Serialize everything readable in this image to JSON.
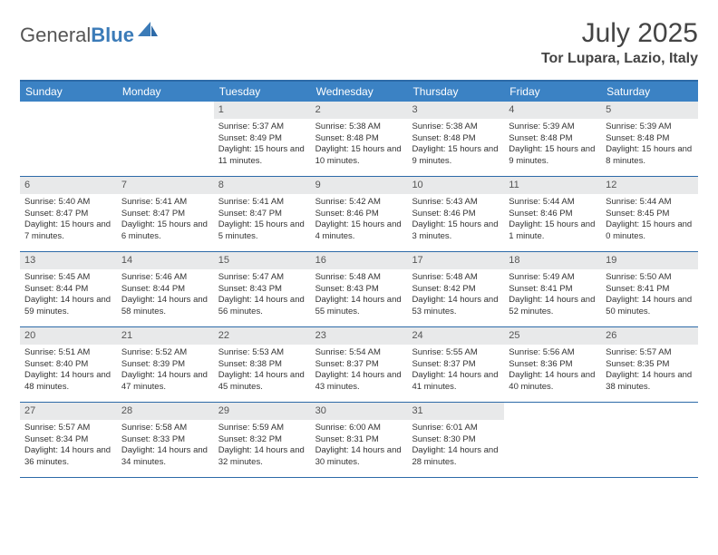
{
  "brand": {
    "part1": "General",
    "part2": "Blue"
  },
  "title": "July 2025",
  "location": "Tor Lupara, Lazio, Italy",
  "colors": {
    "header_bg": "#3b82c4",
    "border": "#2d6aa8",
    "daynum_bg": "#e8e9ea",
    "text": "#333333",
    "brand_blue": "#3b7bb8"
  },
  "day_names": [
    "Sunday",
    "Monday",
    "Tuesday",
    "Wednesday",
    "Thursday",
    "Friday",
    "Saturday"
  ],
  "weeks": [
    [
      null,
      null,
      {
        "n": "1",
        "sr": "5:37 AM",
        "ss": "8:49 PM",
        "dl": "15 hours and 11 minutes."
      },
      {
        "n": "2",
        "sr": "5:38 AM",
        "ss": "8:48 PM",
        "dl": "15 hours and 10 minutes."
      },
      {
        "n": "3",
        "sr": "5:38 AM",
        "ss": "8:48 PM",
        "dl": "15 hours and 9 minutes."
      },
      {
        "n": "4",
        "sr": "5:39 AM",
        "ss": "8:48 PM",
        "dl": "15 hours and 9 minutes."
      },
      {
        "n": "5",
        "sr": "5:39 AM",
        "ss": "8:48 PM",
        "dl": "15 hours and 8 minutes."
      }
    ],
    [
      {
        "n": "6",
        "sr": "5:40 AM",
        "ss": "8:47 PM",
        "dl": "15 hours and 7 minutes."
      },
      {
        "n": "7",
        "sr": "5:41 AM",
        "ss": "8:47 PM",
        "dl": "15 hours and 6 minutes."
      },
      {
        "n": "8",
        "sr": "5:41 AM",
        "ss": "8:47 PM",
        "dl": "15 hours and 5 minutes."
      },
      {
        "n": "9",
        "sr": "5:42 AM",
        "ss": "8:46 PM",
        "dl": "15 hours and 4 minutes."
      },
      {
        "n": "10",
        "sr": "5:43 AM",
        "ss": "8:46 PM",
        "dl": "15 hours and 3 minutes."
      },
      {
        "n": "11",
        "sr": "5:44 AM",
        "ss": "8:46 PM",
        "dl": "15 hours and 1 minute."
      },
      {
        "n": "12",
        "sr": "5:44 AM",
        "ss": "8:45 PM",
        "dl": "15 hours and 0 minutes."
      }
    ],
    [
      {
        "n": "13",
        "sr": "5:45 AM",
        "ss": "8:44 PM",
        "dl": "14 hours and 59 minutes."
      },
      {
        "n": "14",
        "sr": "5:46 AM",
        "ss": "8:44 PM",
        "dl": "14 hours and 58 minutes."
      },
      {
        "n": "15",
        "sr": "5:47 AM",
        "ss": "8:43 PM",
        "dl": "14 hours and 56 minutes."
      },
      {
        "n": "16",
        "sr": "5:48 AM",
        "ss": "8:43 PM",
        "dl": "14 hours and 55 minutes."
      },
      {
        "n": "17",
        "sr": "5:48 AM",
        "ss": "8:42 PM",
        "dl": "14 hours and 53 minutes."
      },
      {
        "n": "18",
        "sr": "5:49 AM",
        "ss": "8:41 PM",
        "dl": "14 hours and 52 minutes."
      },
      {
        "n": "19",
        "sr": "5:50 AM",
        "ss": "8:41 PM",
        "dl": "14 hours and 50 minutes."
      }
    ],
    [
      {
        "n": "20",
        "sr": "5:51 AM",
        "ss": "8:40 PM",
        "dl": "14 hours and 48 minutes."
      },
      {
        "n": "21",
        "sr": "5:52 AM",
        "ss": "8:39 PM",
        "dl": "14 hours and 47 minutes."
      },
      {
        "n": "22",
        "sr": "5:53 AM",
        "ss": "8:38 PM",
        "dl": "14 hours and 45 minutes."
      },
      {
        "n": "23",
        "sr": "5:54 AM",
        "ss": "8:37 PM",
        "dl": "14 hours and 43 minutes."
      },
      {
        "n": "24",
        "sr": "5:55 AM",
        "ss": "8:37 PM",
        "dl": "14 hours and 41 minutes."
      },
      {
        "n": "25",
        "sr": "5:56 AM",
        "ss": "8:36 PM",
        "dl": "14 hours and 40 minutes."
      },
      {
        "n": "26",
        "sr": "5:57 AM",
        "ss": "8:35 PM",
        "dl": "14 hours and 38 minutes."
      }
    ],
    [
      {
        "n": "27",
        "sr": "5:57 AM",
        "ss": "8:34 PM",
        "dl": "14 hours and 36 minutes."
      },
      {
        "n": "28",
        "sr": "5:58 AM",
        "ss": "8:33 PM",
        "dl": "14 hours and 34 minutes."
      },
      {
        "n": "29",
        "sr": "5:59 AM",
        "ss": "8:32 PM",
        "dl": "14 hours and 32 minutes."
      },
      {
        "n": "30",
        "sr": "6:00 AM",
        "ss": "8:31 PM",
        "dl": "14 hours and 30 minutes."
      },
      {
        "n": "31",
        "sr": "6:01 AM",
        "ss": "8:30 PM",
        "dl": "14 hours and 28 minutes."
      },
      null,
      null
    ]
  ],
  "labels": {
    "sunrise": "Sunrise: ",
    "sunset": "Sunset: ",
    "daylight": "Daylight: "
  }
}
